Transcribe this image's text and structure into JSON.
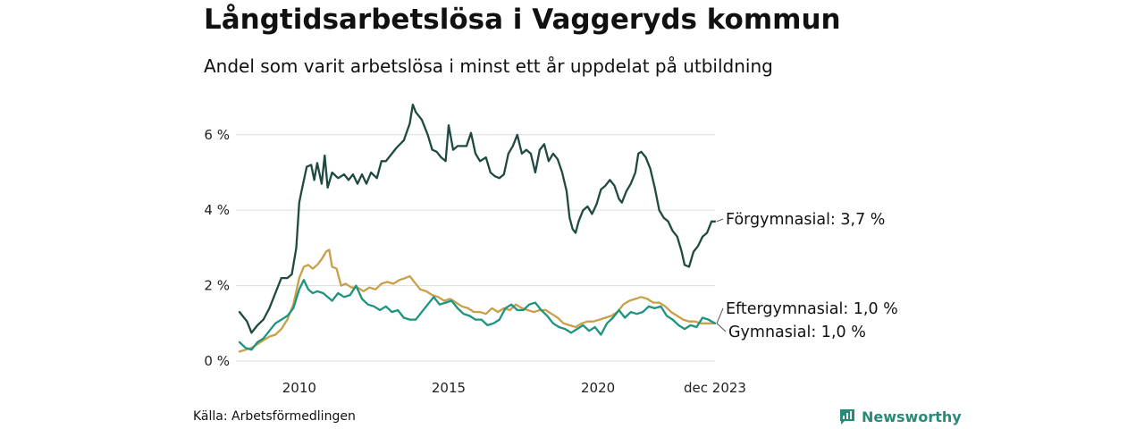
{
  "header": {
    "title": "Långtidsarbetslösa i Vaggeryds kommun",
    "subtitle": "Andel som varit arbetslösa i minst ett år uppdelat på utbildning"
  },
  "footer": {
    "source": "Källa: Arbetsförmedlingen",
    "brand": "Newsworthy"
  },
  "colors": {
    "forgymnasial": "#1f4a42",
    "eftergymnasial": "#c9a04a",
    "gymnasial": "#1d9480",
    "grid": "#dddddd",
    "brand": "#2a8a78"
  },
  "chart_data": {
    "type": "line",
    "title": "Långtidsarbetslösa i Vaggeryds kommun",
    "subtitle": "Andel som varit arbetslösa i minst ett år uppdelat på utbildning",
    "xlabel": "",
    "ylabel": "",
    "x_range": [
      2008.0,
      2023.917
    ],
    "ylim": [
      0,
      6.8
    ],
    "grid": true,
    "y_ticks": [
      {
        "value": 0,
        "label": "0 %"
      },
      {
        "value": 2,
        "label": "2 %"
      },
      {
        "value": 4,
        "label": "4 %"
      },
      {
        "value": 6,
        "label": "6 %"
      }
    ],
    "x_ticks": [
      {
        "value": 2010,
        "label": "2010"
      },
      {
        "value": 2015,
        "label": "2015"
      },
      {
        "value": 2020,
        "label": "2020"
      },
      {
        "value": 2023.917,
        "label": "dec 2023"
      }
    ],
    "series": [
      {
        "name": "Förgymnasial",
        "label": "Förgymnasial: 3,7 %",
        "color": "#1f4a42",
        "points": [
          [
            2008.0,
            1.3
          ],
          [
            2008.25,
            1.05
          ],
          [
            2008.4,
            0.75
          ],
          [
            2008.6,
            0.95
          ],
          [
            2008.8,
            1.1
          ],
          [
            2009.0,
            1.4
          ],
          [
            2009.2,
            1.8
          ],
          [
            2009.4,
            2.2
          ],
          [
            2009.6,
            2.2
          ],
          [
            2009.75,
            2.3
          ],
          [
            2009.9,
            3.0
          ],
          [
            2010.0,
            4.2
          ],
          [
            2010.1,
            4.6
          ],
          [
            2010.25,
            5.15
          ],
          [
            2010.4,
            5.2
          ],
          [
            2010.5,
            4.8
          ],
          [
            2010.6,
            5.25
          ],
          [
            2010.75,
            4.7
          ],
          [
            2010.85,
            5.45
          ],
          [
            2010.95,
            4.6
          ],
          [
            2011.1,
            5.0
          ],
          [
            2011.3,
            4.85
          ],
          [
            2011.5,
            4.95
          ],
          [
            2011.65,
            4.8
          ],
          [
            2011.8,
            4.95
          ],
          [
            2011.95,
            4.7
          ],
          [
            2012.1,
            4.95
          ],
          [
            2012.25,
            4.7
          ],
          [
            2012.4,
            5.0
          ],
          [
            2012.6,
            4.85
          ],
          [
            2012.75,
            5.3
          ],
          [
            2012.9,
            5.3
          ],
          [
            2013.1,
            5.5
          ],
          [
            2013.25,
            5.65
          ],
          [
            2013.5,
            5.85
          ],
          [
            2013.7,
            6.3
          ],
          [
            2013.8,
            6.8
          ],
          [
            2013.9,
            6.6
          ],
          [
            2014.1,
            6.4
          ],
          [
            2014.3,
            6.0
          ],
          [
            2014.45,
            5.6
          ],
          [
            2014.6,
            5.55
          ],
          [
            2014.75,
            5.4
          ],
          [
            2014.9,
            5.3
          ],
          [
            2015.0,
            6.25
          ],
          [
            2015.15,
            5.6
          ],
          [
            2015.3,
            5.7
          ],
          [
            2015.45,
            5.7
          ],
          [
            2015.6,
            5.7
          ],
          [
            2015.75,
            6.05
          ],
          [
            2015.9,
            5.5
          ],
          [
            2016.05,
            5.3
          ],
          [
            2016.25,
            5.4
          ],
          [
            2016.4,
            5.0
          ],
          [
            2016.55,
            4.9
          ],
          [
            2016.7,
            4.85
          ],
          [
            2016.85,
            4.95
          ],
          [
            2017.0,
            5.5
          ],
          [
            2017.15,
            5.7
          ],
          [
            2017.3,
            6.0
          ],
          [
            2017.45,
            5.5
          ],
          [
            2017.6,
            5.6
          ],
          [
            2017.75,
            5.5
          ],
          [
            2017.9,
            5.0
          ],
          [
            2018.05,
            5.6
          ],
          [
            2018.2,
            5.75
          ],
          [
            2018.35,
            5.3
          ],
          [
            2018.5,
            5.5
          ],
          [
            2018.65,
            5.35
          ],
          [
            2018.8,
            5.0
          ],
          [
            2018.95,
            4.5
          ],
          [
            2019.05,
            3.8
          ],
          [
            2019.15,
            3.5
          ],
          [
            2019.25,
            3.4
          ],
          [
            2019.35,
            3.7
          ],
          [
            2019.5,
            4.0
          ],
          [
            2019.65,
            4.1
          ],
          [
            2019.8,
            3.9
          ],
          [
            2019.95,
            4.15
          ],
          [
            2020.1,
            4.55
          ],
          [
            2020.25,
            4.65
          ],
          [
            2020.4,
            4.8
          ],
          [
            2020.55,
            4.65
          ],
          [
            2020.7,
            4.3
          ],
          [
            2020.8,
            4.2
          ],
          [
            2020.95,
            4.5
          ],
          [
            2021.1,
            4.7
          ],
          [
            2021.25,
            5.0
          ],
          [
            2021.35,
            5.5
          ],
          [
            2021.45,
            5.55
          ],
          [
            2021.6,
            5.4
          ],
          [
            2021.75,
            5.1
          ],
          [
            2021.9,
            4.6
          ],
          [
            2022.05,
            4.0
          ],
          [
            2022.2,
            3.8
          ],
          [
            2022.35,
            3.7
          ],
          [
            2022.5,
            3.45
          ],
          [
            2022.65,
            3.3
          ],
          [
            2022.8,
            2.9
          ],
          [
            2022.9,
            2.55
          ],
          [
            2023.05,
            2.5
          ],
          [
            2023.2,
            2.9
          ],
          [
            2023.35,
            3.05
          ],
          [
            2023.5,
            3.3
          ],
          [
            2023.65,
            3.4
          ],
          [
            2023.8,
            3.7
          ],
          [
            2023.917,
            3.7
          ]
        ]
      },
      {
        "name": "Eftergymnasial",
        "label": "Eftergymnasial: 1,0 %",
        "color": "#c9a04a",
        "points": [
          [
            2008.0,
            0.25
          ],
          [
            2008.2,
            0.3
          ],
          [
            2008.4,
            0.35
          ],
          [
            2008.6,
            0.45
          ],
          [
            2008.8,
            0.55
          ],
          [
            2009.0,
            0.65
          ],
          [
            2009.2,
            0.7
          ],
          [
            2009.4,
            0.85
          ],
          [
            2009.6,
            1.1
          ],
          [
            2009.8,
            1.5
          ],
          [
            2010.0,
            2.2
          ],
          [
            2010.15,
            2.5
          ],
          [
            2010.3,
            2.55
          ],
          [
            2010.45,
            2.45
          ],
          [
            2010.6,
            2.55
          ],
          [
            2010.75,
            2.7
          ],
          [
            2010.9,
            2.9
          ],
          [
            2011.0,
            2.95
          ],
          [
            2011.1,
            2.5
          ],
          [
            2011.25,
            2.45
          ],
          [
            2011.4,
            2.0
          ],
          [
            2011.55,
            2.05
          ],
          [
            2011.75,
            1.95
          ],
          [
            2011.95,
            1.95
          ],
          [
            2012.15,
            1.85
          ],
          [
            2012.35,
            1.95
          ],
          [
            2012.55,
            1.9
          ],
          [
            2012.75,
            2.05
          ],
          [
            2012.95,
            2.1
          ],
          [
            2013.15,
            2.05
          ],
          [
            2013.35,
            2.15
          ],
          [
            2013.55,
            2.2
          ],
          [
            2013.7,
            2.25
          ],
          [
            2013.85,
            2.1
          ],
          [
            2014.05,
            1.9
          ],
          [
            2014.25,
            1.85
          ],
          [
            2014.45,
            1.75
          ],
          [
            2014.65,
            1.7
          ],
          [
            2014.85,
            1.6
          ],
          [
            2015.05,
            1.65
          ],
          [
            2015.25,
            1.55
          ],
          [
            2015.45,
            1.45
          ],
          [
            2015.65,
            1.4
          ],
          [
            2015.85,
            1.3
          ],
          [
            2016.05,
            1.3
          ],
          [
            2016.25,
            1.25
          ],
          [
            2016.45,
            1.4
          ],
          [
            2016.65,
            1.3
          ],
          [
            2016.85,
            1.4
          ],
          [
            2017.05,
            1.35
          ],
          [
            2017.25,
            1.5
          ],
          [
            2017.45,
            1.4
          ],
          [
            2017.65,
            1.35
          ],
          [
            2017.85,
            1.3
          ],
          [
            2018.05,
            1.35
          ],
          [
            2018.25,
            1.35
          ],
          [
            2018.45,
            1.25
          ],
          [
            2018.65,
            1.15
          ],
          [
            2018.85,
            1.0
          ],
          [
            2019.05,
            0.95
          ],
          [
            2019.25,
            0.9
          ],
          [
            2019.45,
            1.0
          ],
          [
            2019.65,
            1.05
          ],
          [
            2019.85,
            1.05
          ],
          [
            2020.05,
            1.1
          ],
          [
            2020.25,
            1.15
          ],
          [
            2020.45,
            1.2
          ],
          [
            2020.65,
            1.3
          ],
          [
            2020.85,
            1.5
          ],
          [
            2021.05,
            1.6
          ],
          [
            2021.25,
            1.65
          ],
          [
            2021.45,
            1.7
          ],
          [
            2021.65,
            1.65
          ],
          [
            2021.85,
            1.55
          ],
          [
            2022.05,
            1.55
          ],
          [
            2022.25,
            1.45
          ],
          [
            2022.45,
            1.3
          ],
          [
            2022.65,
            1.2
          ],
          [
            2022.85,
            1.1
          ],
          [
            2023.05,
            1.05
          ],
          [
            2023.25,
            1.05
          ],
          [
            2023.45,
            1.0
          ],
          [
            2023.65,
            1.0
          ],
          [
            2023.917,
            1.0
          ]
        ]
      },
      {
        "name": "Gymnasial",
        "label": "Gymnasial: 1,0 %",
        "color": "#1d9480",
        "points": [
          [
            2008.0,
            0.5
          ],
          [
            2008.2,
            0.35
          ],
          [
            2008.4,
            0.3
          ],
          [
            2008.6,
            0.5
          ],
          [
            2008.8,
            0.6
          ],
          [
            2009.0,
            0.8
          ],
          [
            2009.2,
            1.0
          ],
          [
            2009.4,
            1.1
          ],
          [
            2009.6,
            1.2
          ],
          [
            2009.8,
            1.4
          ],
          [
            2010.0,
            1.9
          ],
          [
            2010.15,
            2.15
          ],
          [
            2010.3,
            1.9
          ],
          [
            2010.45,
            1.8
          ],
          [
            2010.6,
            1.85
          ],
          [
            2010.8,
            1.8
          ],
          [
            2010.95,
            1.7
          ],
          [
            2011.1,
            1.6
          ],
          [
            2011.3,
            1.8
          ],
          [
            2011.5,
            1.7
          ],
          [
            2011.7,
            1.75
          ],
          [
            2011.9,
            2.0
          ],
          [
            2012.1,
            1.65
          ],
          [
            2012.3,
            1.5
          ],
          [
            2012.5,
            1.45
          ],
          [
            2012.7,
            1.35
          ],
          [
            2012.9,
            1.45
          ],
          [
            2013.1,
            1.3
          ],
          [
            2013.3,
            1.35
          ],
          [
            2013.5,
            1.15
          ],
          [
            2013.7,
            1.1
          ],
          [
            2013.9,
            1.1
          ],
          [
            2014.1,
            1.3
          ],
          [
            2014.3,
            1.5
          ],
          [
            2014.5,
            1.7
          ],
          [
            2014.7,
            1.5
          ],
          [
            2014.9,
            1.55
          ],
          [
            2015.1,
            1.6
          ],
          [
            2015.3,
            1.4
          ],
          [
            2015.5,
            1.25
          ],
          [
            2015.7,
            1.2
          ],
          [
            2015.9,
            1.1
          ],
          [
            2016.1,
            1.1
          ],
          [
            2016.3,
            0.95
          ],
          [
            2016.5,
            1.0
          ],
          [
            2016.7,
            1.1
          ],
          [
            2016.9,
            1.4
          ],
          [
            2017.1,
            1.5
          ],
          [
            2017.3,
            1.35
          ],
          [
            2017.5,
            1.35
          ],
          [
            2017.7,
            1.5
          ],
          [
            2017.9,
            1.55
          ],
          [
            2018.1,
            1.35
          ],
          [
            2018.3,
            1.2
          ],
          [
            2018.5,
            1.0
          ],
          [
            2018.7,
            0.9
          ],
          [
            2018.9,
            0.85
          ],
          [
            2019.1,
            0.75
          ],
          [
            2019.3,
            0.85
          ],
          [
            2019.5,
            0.95
          ],
          [
            2019.7,
            0.8
          ],
          [
            2019.9,
            0.9
          ],
          [
            2020.1,
            0.7
          ],
          [
            2020.3,
            1.0
          ],
          [
            2020.5,
            1.15
          ],
          [
            2020.7,
            1.35
          ],
          [
            2020.9,
            1.15
          ],
          [
            2021.1,
            1.3
          ],
          [
            2021.3,
            1.25
          ],
          [
            2021.5,
            1.3
          ],
          [
            2021.7,
            1.45
          ],
          [
            2021.9,
            1.4
          ],
          [
            2022.1,
            1.45
          ],
          [
            2022.3,
            1.2
          ],
          [
            2022.5,
            1.1
          ],
          [
            2022.7,
            0.95
          ],
          [
            2022.9,
            0.85
          ],
          [
            2023.1,
            0.95
          ],
          [
            2023.3,
            0.9
          ],
          [
            2023.5,
            1.15
          ],
          [
            2023.7,
            1.1
          ],
          [
            2023.917,
            1.0
          ]
        ]
      }
    ]
  }
}
